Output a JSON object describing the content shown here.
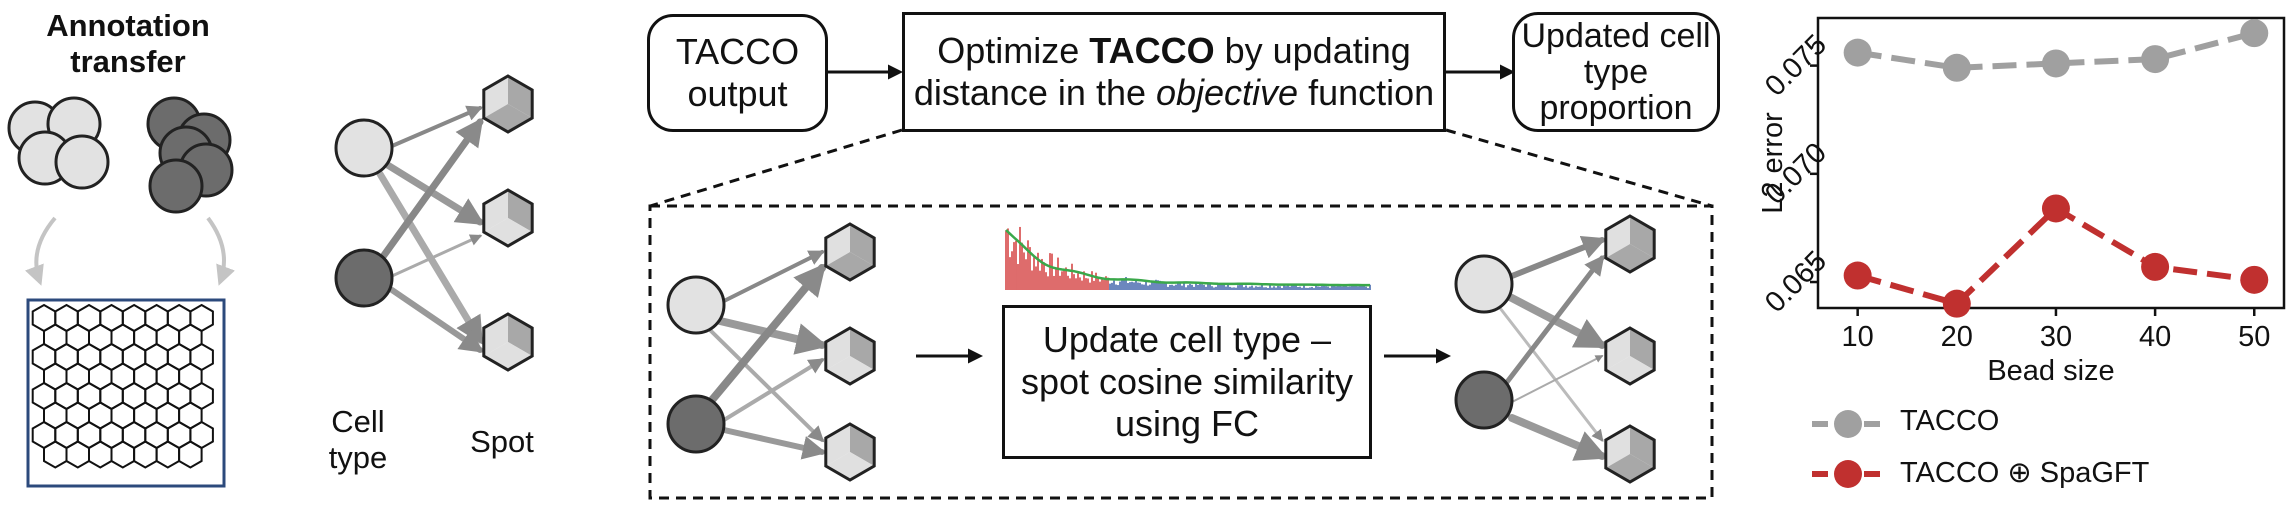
{
  "panel_a": {
    "title_line1": "Annotation",
    "title_line2": "transfer"
  },
  "panel_b": {
    "cell_label_line1": "Cell",
    "cell_label_line2": "type",
    "spot_label": "Spot"
  },
  "flow": {
    "box1_line1": "TACCO",
    "box1_line2": "output",
    "box2_line1_pre": "Optimize ",
    "box2_line1_bold": "TACCO",
    "box2_line1_post": " by updating",
    "box2_line2_pre": "distance in the ",
    "box2_line2_ital": "objective",
    "box2_line2_post": " function",
    "box3_line1": "Updated cell",
    "box3_line2": "type",
    "box3_line3": "proportion",
    "inner_line1": "Update cell type –",
    "inner_line2": "spot cosine similarity",
    "inner_line3": "using FC"
  },
  "colors": {
    "light_cell": "#e2e2e2",
    "dark_cell": "#6c6c6c",
    "tacco_series": "#a0a0a0",
    "spagft_series": "#c0302f",
    "spectrum_red": "#d23a3a",
    "spectrum_blue": "#3a5fa8",
    "spectrum_green": "#3aa84a"
  },
  "chart_data": {
    "type": "line",
    "x": [
      10,
      20,
      30,
      40,
      50
    ],
    "xlabel": "Bead size",
    "ylabel": "L2 error",
    "xticks": [
      "10",
      "20",
      "30",
      "40",
      "50"
    ],
    "yticks": [
      "0.065",
      "0.070",
      "0.075"
    ],
    "ylim": [
      0.0638,
      0.0772
    ],
    "xlim": [
      6,
      53
    ],
    "series": [
      {
        "name": "TACCO",
        "values": [
          0.0756,
          0.0749,
          0.0751,
          0.0753,
          0.0765
        ],
        "color": "#a0a0a0"
      },
      {
        "name": "TACCO ⊕ SpaGFT",
        "values": [
          0.0653,
          0.064,
          0.0684,
          0.0657,
          0.0651
        ],
        "color": "#c0302f"
      }
    ],
    "legend_position": "bottom"
  }
}
